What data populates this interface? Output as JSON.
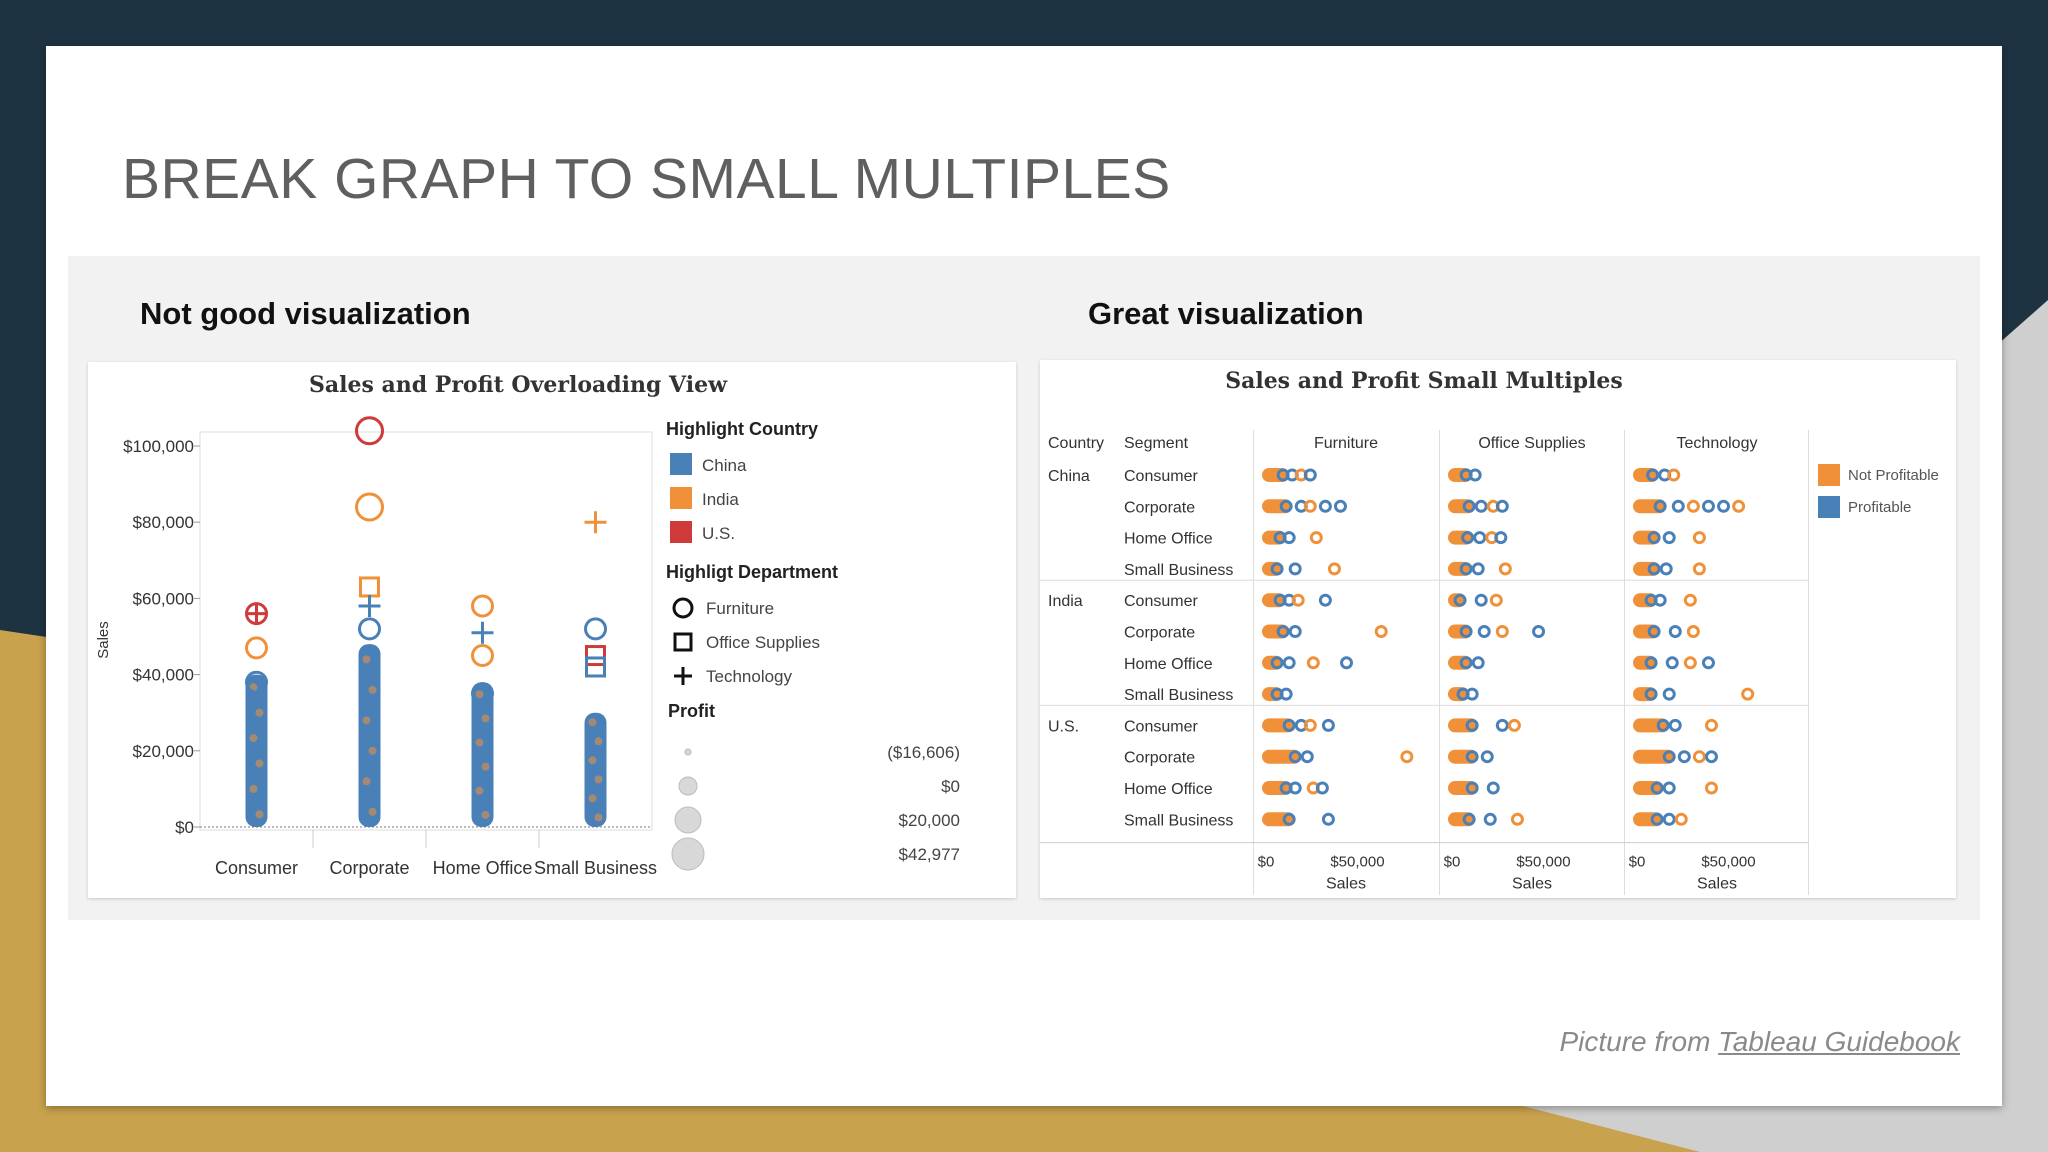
{
  "slide": {
    "title": "BREAK GRAPH TO SMALL MULTIPLES",
    "left_heading": "Not good visualization",
    "right_heading": "Great visualization",
    "credit_prefix": "Picture from ",
    "credit_link": "Tableau Guidebook"
  },
  "theme": {
    "background": "#1e3342",
    "gold_accent": "#c9a24e",
    "china": "#4a80b8",
    "india": "#f0913a",
    "us": "#cf3b3b",
    "not_profitable": "#f0913a",
    "profitable": "#4a80b8"
  },
  "chart_data": [
    {
      "type": "scatter",
      "title": "Sales and Profit Overloading View",
      "ylabel": "Sales",
      "categories": [
        "Consumer",
        "Corporate",
        "Home Office",
        "Small Business"
      ],
      "y_ticks": [
        "$100,000",
        "$80,000",
        "$60,000",
        "$40,000",
        "$20,000",
        "$0"
      ],
      "ylim": [
        0,
        110000
      ],
      "legend": {
        "country_title": "Highlight Country",
        "countries": [
          {
            "label": "China",
            "color": "#4a80b8"
          },
          {
            "label": "India",
            "color": "#f0913a"
          },
          {
            "label": "U.S.",
            "color": "#cf3b3b"
          }
        ],
        "department_title": "Highligt Department",
        "departments": [
          {
            "label": "Furniture",
            "shape": "circle"
          },
          {
            "label": "Office Supplies",
            "shape": "square"
          },
          {
            "label": "Technology",
            "shape": "plus"
          }
        ],
        "profit_title": "Profit",
        "profit_sizes": [
          "($16,606)",
          "$0",
          "$20,000",
          "$42,977"
        ]
      },
      "columns_max": [
        {
          "category": "Consumer",
          "max": 40000
        },
        {
          "category": "Corporate",
          "max": 48000
        },
        {
          "category": "Home Office",
          "max": 38000
        },
        {
          "category": "Small Business",
          "max": 30000
        }
      ],
      "outliers": [
        {
          "category": "Consumer",
          "y": 56000,
          "country": "U.S.",
          "shape": "circle"
        },
        {
          "category": "Consumer",
          "y": 56000,
          "country": "U.S.",
          "shape": "plus"
        },
        {
          "category": "Consumer",
          "y": 47000,
          "country": "India",
          "shape": "circle"
        },
        {
          "category": "Consumer",
          "y": 38000,
          "country": "China",
          "shape": "circle"
        },
        {
          "category": "Corporate",
          "y": 104000,
          "country": "U.S.",
          "shape": "circle"
        },
        {
          "category": "Corporate",
          "y": 84000,
          "country": "India",
          "shape": "circle"
        },
        {
          "category": "Corporate",
          "y": 63000,
          "country": "India",
          "shape": "square"
        },
        {
          "category": "Corporate",
          "y": 58000,
          "country": "China",
          "shape": "plus"
        },
        {
          "category": "Corporate",
          "y": 52000,
          "country": "China",
          "shape": "circle"
        },
        {
          "category": "Home Office",
          "y": 58000,
          "country": "India",
          "shape": "circle"
        },
        {
          "category": "Home Office",
          "y": 51000,
          "country": "China",
          "shape": "plus"
        },
        {
          "category": "Home Office",
          "y": 45000,
          "country": "India",
          "shape": "circle"
        },
        {
          "category": "Home Office",
          "y": 35000,
          "country": "China",
          "shape": "circle"
        },
        {
          "category": "Small Business",
          "y": 80000,
          "country": "India",
          "shape": "plus"
        },
        {
          "category": "Small Business",
          "y": 52000,
          "country": "China",
          "shape": "circle"
        },
        {
          "category": "Small Business",
          "y": 45000,
          "country": "U.S.",
          "shape": "square"
        },
        {
          "category": "Small Business",
          "y": 42000,
          "country": "China",
          "shape": "square"
        }
      ]
    },
    {
      "type": "scatter",
      "title": "Sales and Profit Small Multiples",
      "row_headers": [
        "Country",
        "Segment"
      ],
      "departments": [
        "Furniture",
        "Office Supplies",
        "Technology"
      ],
      "countries": [
        "China",
        "India",
        "U.S."
      ],
      "segments": [
        "Consumer",
        "Corporate",
        "Home Office",
        "Small Business"
      ],
      "x_ticks": [
        "$0",
        "$50,000"
      ],
      "xlabel": "Sales",
      "xlim": [
        0,
        110000
      ],
      "legend": [
        {
          "label": "Not Profitable",
          "color": "#f0913a"
        },
        {
          "label": "Profitable",
          "color": "#4a80b8"
        }
      ],
      "rows": [
        {
          "country": "China",
          "segment": "Consumer",
          "Furniture": [
            14000,
            20000,
            26000,
            32000
          ],
          "Office Supplies": [
            12000,
            18000
          ],
          "Technology": [
            13000,
            21000,
            27000
          ]
        },
        {
          "country": "China",
          "segment": "Corporate",
          "Furniture": [
            16000,
            26000,
            32000,
            42000,
            52000
          ],
          "Office Supplies": [
            14000,
            22000,
            30000,
            36000
          ],
          "Technology": [
            18000,
            30000,
            40000,
            50000,
            60000,
            70000
          ]
        },
        {
          "country": "China",
          "segment": "Home Office",
          "Furniture": [
            12000,
            18000,
            36000
          ],
          "Office Supplies": [
            13000,
            21000,
            29000,
            35000
          ],
          "Technology": [
            14000,
            24000,
            44000
          ]
        },
        {
          "country": "China",
          "segment": "Small Business",
          "Furniture": [
            10000,
            22000,
            48000
          ],
          "Office Supplies": [
            12000,
            20000,
            38000
          ],
          "Technology": [
            14000,
            22000,
            44000
          ]
        },
        {
          "country": "India",
          "segment": "Consumer",
          "Furniture": [
            12000,
            18000,
            24000,
            42000
          ],
          "Office Supplies": [
            8000,
            22000,
            32000
          ],
          "Technology": [
            12000,
            18000,
            38000
          ]
        },
        {
          "country": "India",
          "segment": "Corporate",
          "Furniture": [
            14000,
            22000,
            79000
          ],
          "Office Supplies": [
            12000,
            24000,
            36000,
            60000
          ],
          "Technology": [
            14000,
            28000,
            40000
          ]
        },
        {
          "country": "India",
          "segment": "Home Office",
          "Furniture": [
            10000,
            18000,
            34000,
            56000
          ],
          "Office Supplies": [
            12000,
            20000
          ],
          "Technology": [
            12000,
            26000,
            38000,
            50000
          ]
        },
        {
          "country": "India",
          "segment": "Small Business",
          "Furniture": [
            10000,
            16000
          ],
          "Office Supplies": [
            10000,
            16000
          ],
          "Technology": [
            12000,
            24000,
            76000
          ]
        },
        {
          "country": "U.S.",
          "segment": "Consumer",
          "Furniture": [
            18000,
            26000,
            32000,
            44000
          ],
          "Office Supplies": [
            16000,
            36000,
            44000
          ],
          "Technology": [
            20000,
            28000,
            52000
          ]
        },
        {
          "country": "U.S.",
          "segment": "Corporate",
          "Furniture": [
            22000,
            30000,
            96000
          ],
          "Office Supplies": [
            16000,
            26000
          ],
          "Technology": [
            24000,
            34000,
            44000,
            52000
          ]
        },
        {
          "country": "U.S.",
          "segment": "Home Office",
          "Furniture": [
            16000,
            22000,
            34000,
            40000
          ],
          "Office Supplies": [
            16000,
            30000
          ],
          "Technology": [
            16000,
            24000,
            52000
          ]
        },
        {
          "country": "U.S.",
          "segment": "Small Business",
          "Furniture": [
            18000,
            44000
          ],
          "Office Supplies": [
            14000,
            28000,
            46000
          ],
          "Technology": [
            16000,
            24000,
            32000
          ]
        }
      ]
    }
  ]
}
